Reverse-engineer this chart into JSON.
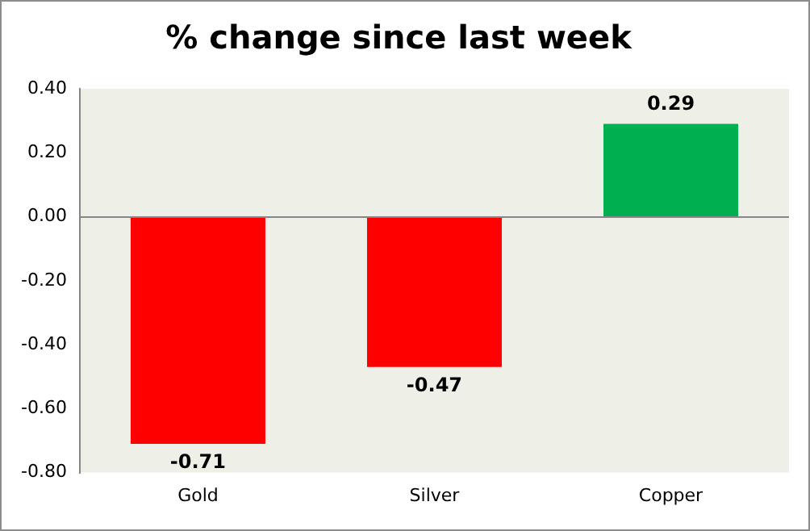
{
  "chart_data": {
    "type": "bar",
    "title": "% change since last week",
    "categories": [
      "Gold",
      "Silver",
      "Copper"
    ],
    "values": [
      -0.71,
      -0.47,
      0.29
    ],
    "colors": [
      "#ff0000",
      "#ff0000",
      "#00b050"
    ],
    "ylim": [
      -0.8,
      0.4
    ],
    "yticks": [
      {
        "value": -0.8,
        "label": "-0.80"
      },
      {
        "value": -0.6,
        "label": "-0.60"
      },
      {
        "value": -0.4,
        "label": "-0.40"
      },
      {
        "value": -0.2,
        "label": "-0.20"
      },
      {
        "value": 0,
        "label": "0.00"
      },
      {
        "value": 0.2,
        "label": "0.20"
      },
      {
        "value": 0.4,
        "label": "0.40"
      }
    ],
    "ref_lines": [
      {
        "axis": "y",
        "value": 0,
        "color": "#868686"
      }
    ],
    "data_labels": true,
    "legend": false
  }
}
